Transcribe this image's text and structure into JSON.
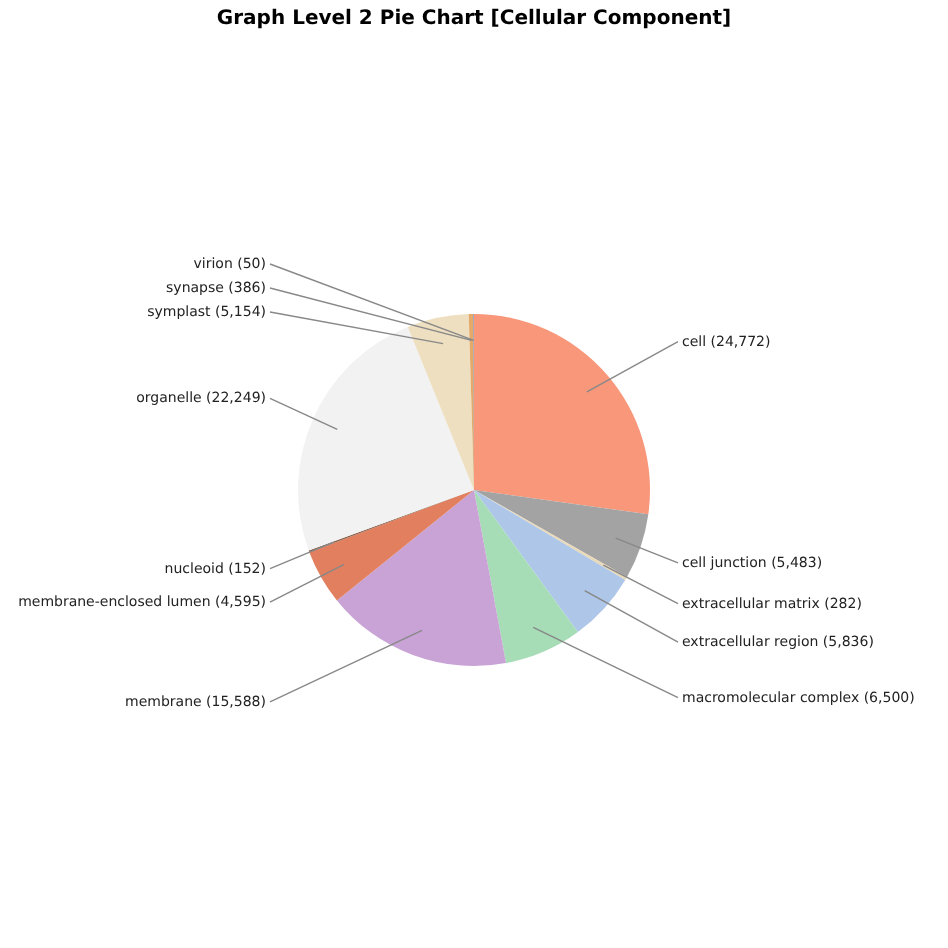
{
  "chart_data": {
    "type": "pie",
    "title": "Graph Level 2 Pie Chart [Cellular Component]",
    "categories": [
      "cell (24,772)",
      "cell junction (5,483)",
      "extracellular matrix (282)",
      "extracellular region (5,836)",
      "macromolecular complex (6,500)",
      "membrane (15,588)",
      "membrane-enclosed lumen (4,595)",
      "nucleoid (152)",
      "organelle (22,249)",
      "symplast (5,154)",
      "synapse (386)",
      "virion (50)"
    ],
    "values": [
      24772,
      5483,
      282,
      5836,
      6500,
      15588,
      4595,
      152,
      22249,
      5154,
      386,
      50
    ],
    "colors": [
      "#f9977a",
      "#a3a3a3",
      "#e9d9b8",
      "#aec6e8",
      "#a6dcb6",
      "#c9a3d6",
      "#e27f5f",
      "#8a6450",
      "#f2f2f2",
      "#eedfc0",
      "#e5a96a",
      "#6a87b5"
    ],
    "legend": false
  }
}
